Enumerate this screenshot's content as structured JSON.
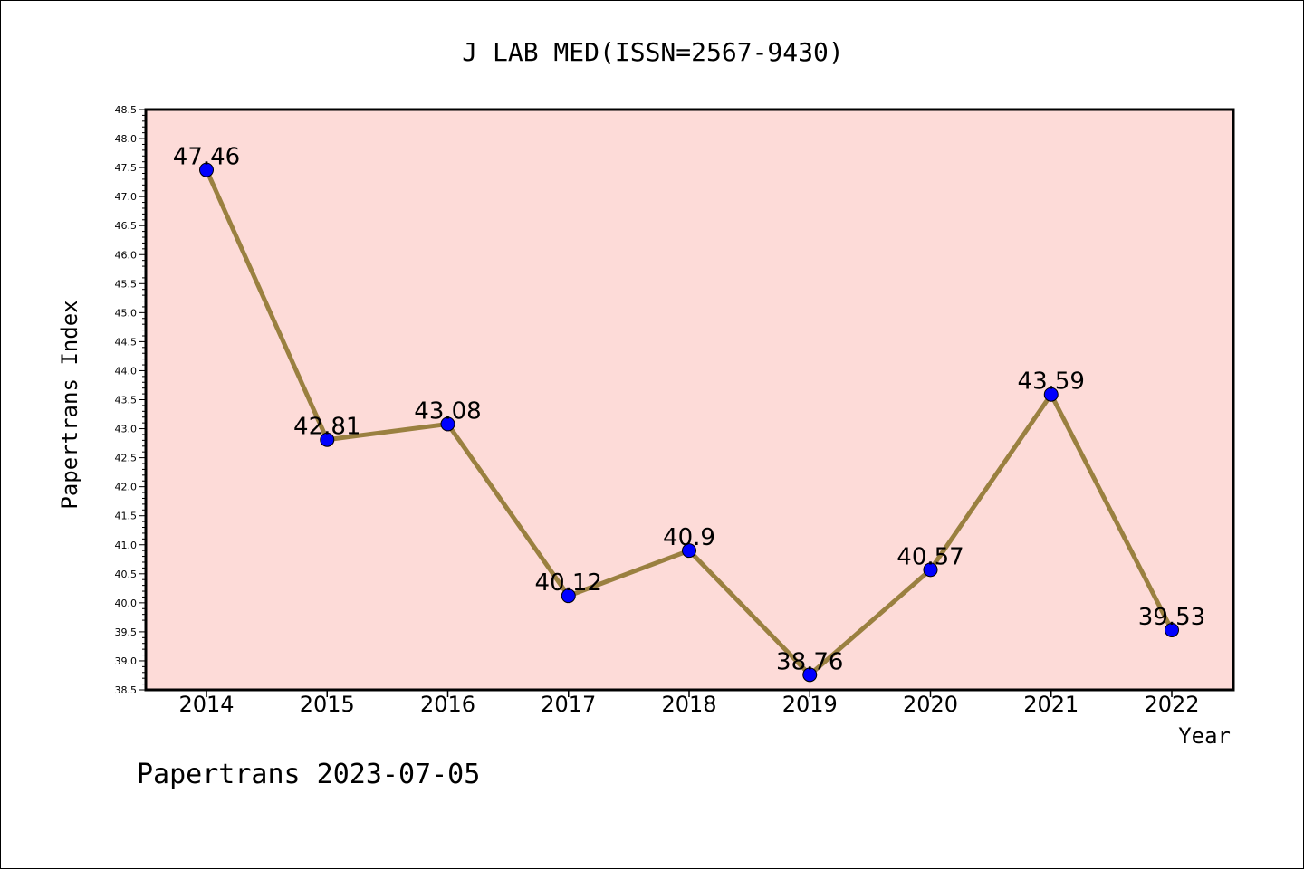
{
  "chart_data": {
    "type": "line",
    "title": "J LAB MED(ISSN=2567-9430)",
    "xlabel": "Year",
    "ylabel": "Papertrans Index",
    "footer": "Papertrans 2023-07-05",
    "categories": [
      "2014",
      "2015",
      "2016",
      "2017",
      "2018",
      "2019",
      "2020",
      "2021",
      "2022"
    ],
    "values": [
      47.46,
      42.81,
      43.08,
      40.12,
      40.9,
      38.76,
      40.57,
      43.59,
      39.53
    ],
    "data_labels": [
      "47.46",
      "42.81",
      "43.08",
      "40.12",
      "40.9",
      "38.76",
      "40.57",
      "43.59",
      "39.53"
    ],
    "ylim": [
      38.5,
      48.5
    ],
    "ytick_step": 0.5,
    "ytick_labels": [
      "38.5",
      "39.0",
      "39.5",
      "40.0",
      "40.5",
      "41.0",
      "41.5",
      "42.0",
      "42.5",
      "43.0",
      "43.5",
      "44.0",
      "44.5",
      "45.0",
      "45.5",
      "46.0",
      "46.5",
      "47.0",
      "47.5",
      "48.0",
      "48.5"
    ],
    "grid": false,
    "colors": {
      "plot_background": "#fddbd8",
      "line": "#9a8040",
      "marker": "#0000ff",
      "axes": "#000000"
    }
  }
}
